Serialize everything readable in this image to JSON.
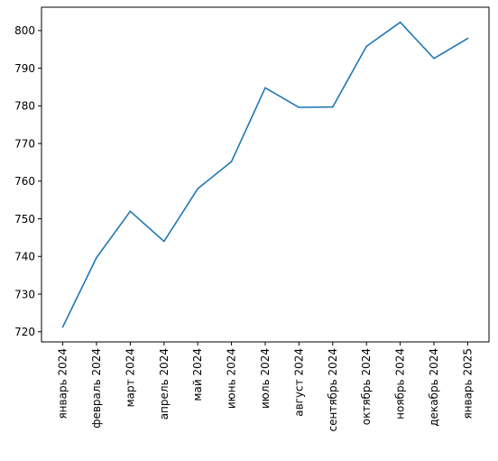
{
  "chart_data": {
    "type": "line",
    "title": "",
    "xlabel": "",
    "ylabel": "",
    "categories": [
      "январь 2024",
      "февраль 2024",
      "март 2024",
      "апрель 2024",
      "май 2024",
      "июнь 2024",
      "июль 2024",
      "август 2024",
      "сентябрь 2024",
      "октябрь 2024",
      "ноябрь 2024",
      "декабрь 2024",
      "январь 2025"
    ],
    "series": [
      {
        "values": [
          721.3,
          739.7,
          752.0,
          744.0,
          758.0,
          765.2,
          784.8,
          779.6,
          779.7,
          795.8,
          802.2,
          792.6,
          797.9
        ]
      }
    ],
    "yticks": [
      720,
      730,
      740,
      750,
      760,
      770,
      780,
      790,
      800
    ],
    "ylim": [
      717.3,
      806.2
    ],
    "grid": false,
    "legend": "none",
    "colors": {
      "line": "#1f77b4",
      "axes": "#000000",
      "background": "#ffffff"
    }
  }
}
